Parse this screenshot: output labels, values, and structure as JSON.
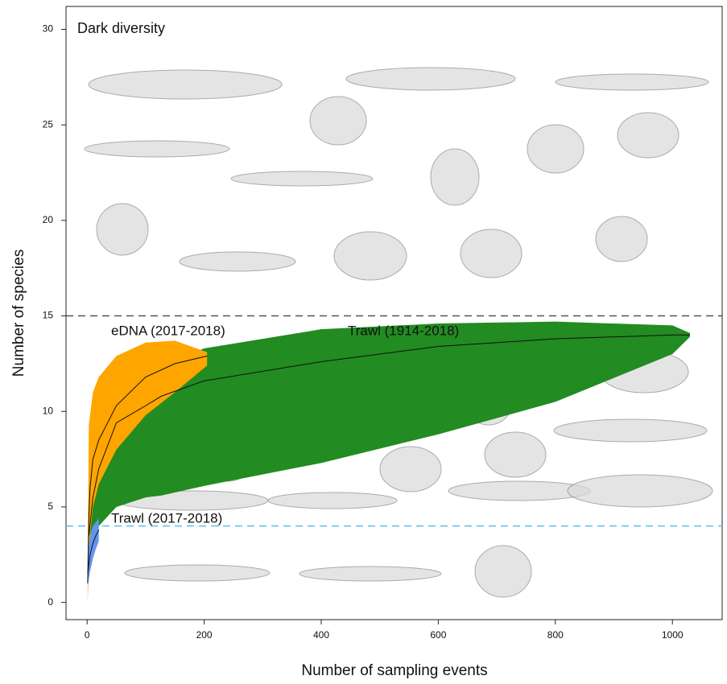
{
  "chart_data": {
    "type": "band-line",
    "annotation": "Dark diversity",
    "x_label": "Number of sampling events",
    "y_label": "Number of species",
    "xlim": [
      -36,
      1085
    ],
    "ylim": [
      -0.9,
      31.2
    ],
    "xticks": [
      0,
      200,
      400,
      600,
      800,
      1000
    ],
    "yticks": [
      0,
      5,
      10,
      15,
      20,
      25,
      30
    ],
    "hlines": [
      {
        "value": 15,
        "color": "#555555"
      },
      {
        "value": 4,
        "color": "#5bc0eb"
      }
    ],
    "series": [
      {
        "name": "Trawl (1914-2018)",
        "color": "#228b22",
        "x": [
          3,
          10,
          20,
          50,
          100,
          127,
          200,
          400,
          600,
          800,
          1000,
          1030
        ],
        "values": [
          3.5,
          5.5,
          7,
          9.4,
          10.3,
          10.8,
          11.6,
          12.6,
          13.4,
          13.8,
          14,
          14
        ],
        "upper": [
          6,
          8,
          9.5,
          11,
          11.7,
          12.3,
          13.3,
          14.3,
          14.6,
          14.7,
          14.5,
          14.1
        ],
        "lower": [
          2.5,
          3.3,
          4,
          5,
          5.5,
          5.6,
          6.1,
          7.3,
          8.8,
          10.5,
          13,
          13.9
        ]
      },
      {
        "name": "eDNA (2017-2018)",
        "color": "#ffa500",
        "x": [
          1,
          3,
          5,
          10,
          20,
          50,
          100,
          150,
          205
        ],
        "values": [
          1,
          4.5,
          6,
          7.5,
          8.5,
          10.3,
          11.8,
          12.5,
          12.9
        ],
        "upper": [
          2,
          9.3,
          9.8,
          11,
          11.8,
          12.9,
          13.6,
          13.7,
          13.1
        ],
        "lower": [
          0,
          2,
          3.5,
          5,
          6.2,
          8,
          9.8,
          11,
          12.4
        ]
      },
      {
        "name": "Trawl (2017-2018)",
        "color": "#6495ed",
        "x": [
          1,
          5,
          10,
          15,
          20
        ],
        "values": [
          1.5,
          2.5,
          3.1,
          3.5,
          3.8
        ],
        "upper": [
          2.5,
          3.5,
          4,
          4.2,
          4.4
        ],
        "lower": [
          0.9,
          1.6,
          2.3,
          2.8,
          3.2
        ]
      }
    ]
  }
}
